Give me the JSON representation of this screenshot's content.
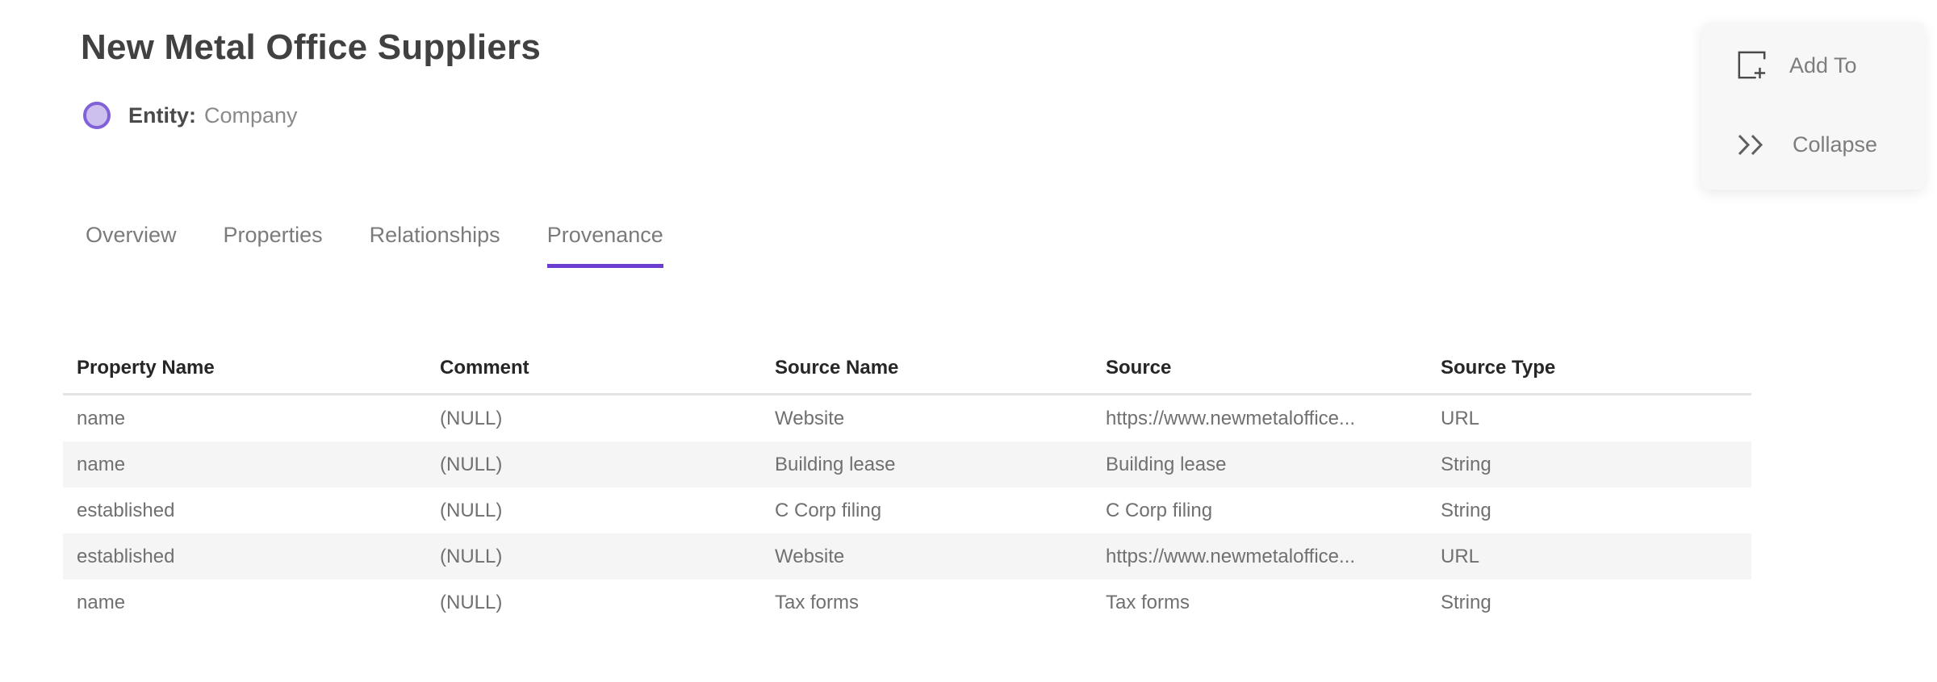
{
  "page": {
    "title": "New Metal Office Suppliers",
    "entity_label": "Entity:",
    "entity_value": "Company"
  },
  "actions": {
    "add_to_label": "Add To",
    "collapse_label": "Collapse"
  },
  "tabs": [
    {
      "label": "Overview",
      "active": false
    },
    {
      "label": "Properties",
      "active": false
    },
    {
      "label": "Relationships",
      "active": false
    },
    {
      "label": "Provenance",
      "active": true
    }
  ],
  "table": {
    "columns": [
      "Property Name",
      "Comment",
      "Source Name",
      "Source",
      "Source Type"
    ],
    "rows": [
      [
        "name",
        "(NULL)",
        "Website",
        "https://www.newmetaloffice...",
        "URL"
      ],
      [
        "name",
        "(NULL)",
        "Building lease",
        "Building lease",
        "String"
      ],
      [
        "established",
        "(NULL)",
        "C Corp filing",
        "C Corp filing",
        "String"
      ],
      [
        "established",
        "(NULL)",
        "Website",
        "https://www.newmetaloffice...",
        "URL"
      ],
      [
        "name",
        "(NULL)",
        "Tax forms",
        "Tax forms",
        "String"
      ]
    ]
  },
  "icons": {
    "entity_shape": "circle-icon",
    "add_to": "add-to-frame-icon",
    "collapse": "double-chevron-right-icon"
  },
  "colors": {
    "accent_purple": "#6c3dd1",
    "entity_fill": "#cdc0ee",
    "entity_border": "#8161d8",
    "row_alt_bg": "#f5f5f5"
  }
}
